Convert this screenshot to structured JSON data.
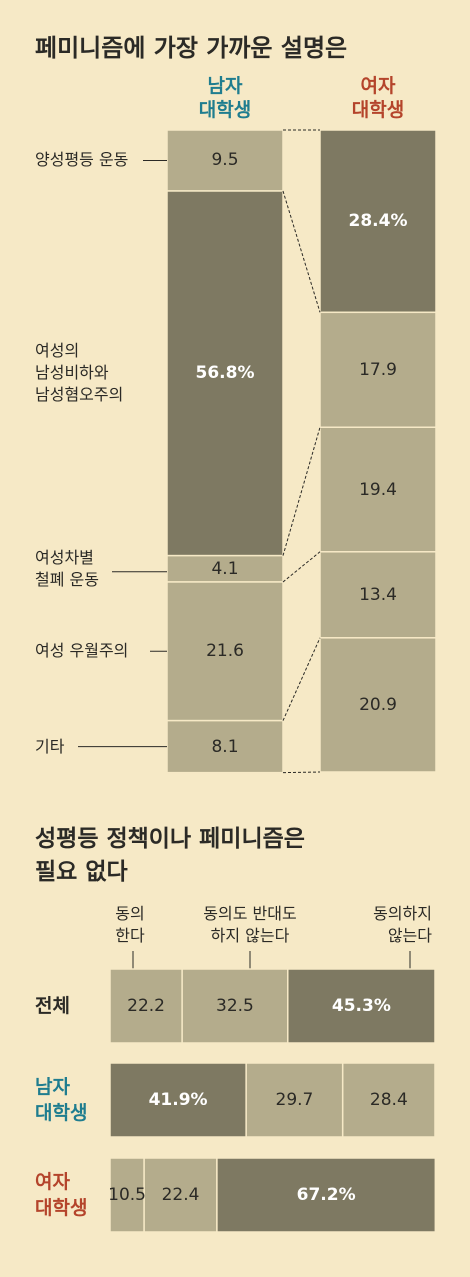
{
  "chart_data": [
    {
      "type": "stacked-column-compare",
      "title": "페미니즘에 가장 가까운 설명은",
      "categories": [
        "양성평등 운동",
        "여성의\n남성비하와\n남성혐오주의",
        "여성차별\n철폐 운동",
        "여성 우월주의",
        "기타"
      ],
      "ylim": [
        0,
        100
      ],
      "series": [
        {
          "name": "남자\n대학생",
          "label_color": "#1f7d8f",
          "values": [
            9.5,
            56.8,
            4.1,
            21.6,
            8.1
          ],
          "value_labels": [
            "9.5",
            "56.8%",
            "4.1",
            "21.6",
            "8.1"
          ],
          "colors": [
            "#b4ac8c",
            "#7e7962",
            "#b4ac8c",
            "#b4ac8c",
            "#b4ac8c"
          ]
        },
        {
          "name": "여자\n대학생",
          "label_color": "#b4442b",
          "values": [
            28.4,
            17.9,
            19.4,
            13.4,
            20.9
          ],
          "value_labels": [
            "28.4%",
            "17.9",
            "19.4",
            "13.4",
            "20.9"
          ],
          "colors": [
            "#7e7962",
            "#b4ac8c",
            "#b4ac8c",
            "#b4ac8c",
            "#b4ac8c"
          ]
        }
      ]
    },
    {
      "type": "stacked-barh",
      "title": "성평등 정책이나 페미니즘은\n필요 없다",
      "categories": [
        "전체",
        "남자\n대학생",
        "여자\n대학생"
      ],
      "category_colors": [
        "#2b2a26",
        "#1f7d8f",
        "#b4442b"
      ],
      "xlim": [
        0,
        100
      ],
      "series": [
        {
          "name": "동의\n한다",
          "values": [
            22.2,
            41.9,
            10.5
          ],
          "value_labels": [
            "22.2",
            "41.9%",
            "10.5"
          ],
          "colors": [
            "#b4ac8c",
            "#7e7962",
            "#b4ac8c"
          ]
        },
        {
          "name": "동의도 반대도\n하지 않는다",
          "values": [
            32.5,
            29.7,
            22.4
          ],
          "value_labels": [
            "32.5",
            "29.7",
            "22.4"
          ],
          "colors": [
            "#b4ac8c",
            "#b4ac8c",
            "#b4ac8c"
          ]
        },
        {
          "name": "동의하지\n않는다",
          "values": [
            45.3,
            28.4,
            67.2
          ],
          "value_labels": [
            "45.3%",
            "28.4",
            "67.2%"
          ],
          "colors": [
            "#7e7962",
            "#b4ac8c",
            "#7e7962"
          ]
        }
      ]
    }
  ]
}
